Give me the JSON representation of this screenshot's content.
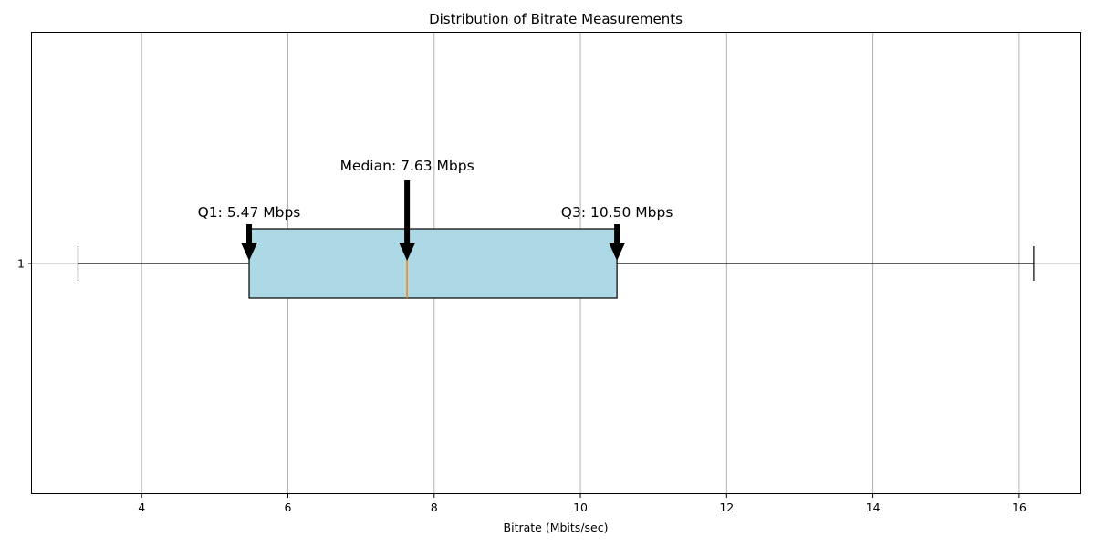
{
  "chart_data": {
    "type": "boxplot",
    "title": "Distribution of Bitrate Measurements",
    "xlabel": "Bitrate (Mbits/sec)",
    "ylabel": "",
    "orientation": "horizontal",
    "xlim": [
      2.5,
      16.85
    ],
    "xticks": [
      4,
      6,
      8,
      10,
      12,
      14,
      16
    ],
    "yticks": [
      "1"
    ],
    "grid": true,
    "box": {
      "category": "1",
      "whisker_low": 3.13,
      "q1": 5.47,
      "median": 7.63,
      "q3": 10.5,
      "whisker_high": 16.2
    },
    "annotations": [
      {
        "text": "Q1: 5.47 Mbps",
        "value": 5.47
      },
      {
        "text": "Median: 7.63 Mbps",
        "value": 7.63
      },
      {
        "text": "Q3: 10.50 Mbps",
        "value": 10.5
      }
    ],
    "colors": {
      "box_fill": "#add8e6",
      "median_line": "#ff7f0e",
      "grid": "#b0b0b0",
      "arrow": "#000000"
    }
  }
}
